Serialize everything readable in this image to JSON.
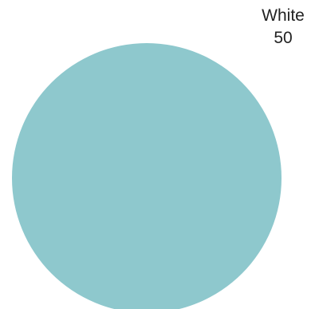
{
  "chart_data": {
    "type": "pie",
    "slices": [
      {
        "label": "White",
        "value": 50,
        "color": "#8ec8cd"
      }
    ]
  }
}
